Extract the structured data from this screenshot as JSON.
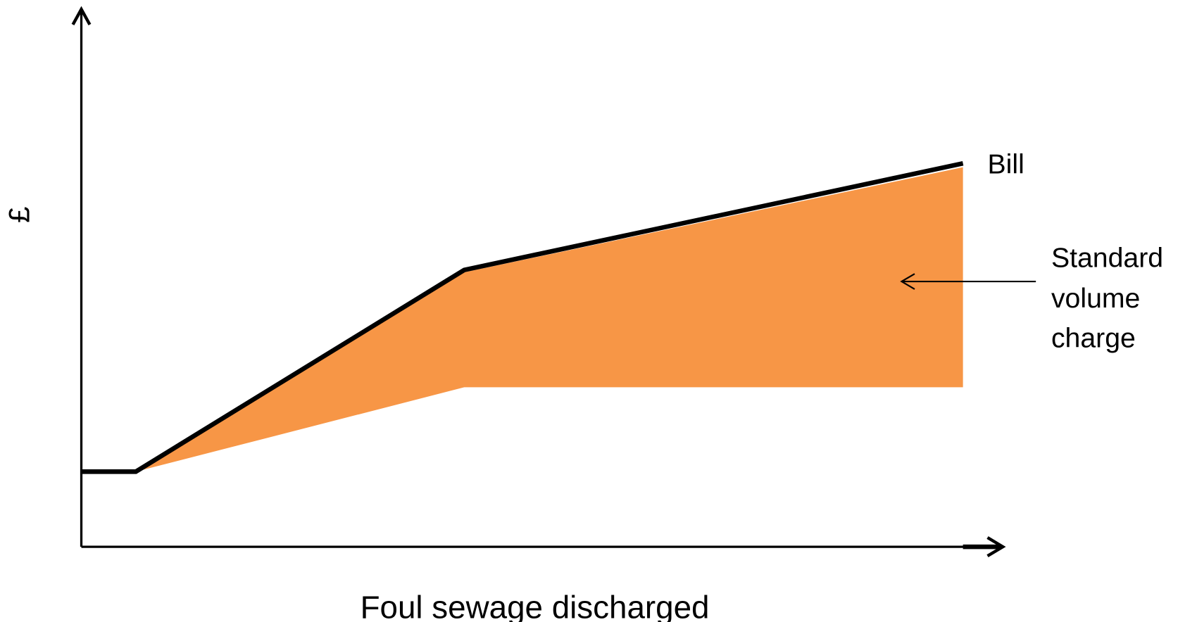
{
  "y_axis_label": "£",
  "x_axis_label": "Foul sewage discharged",
  "line_label": "Bill",
  "area_label": [
    "Standard",
    "volume",
    "charge"
  ]
}
